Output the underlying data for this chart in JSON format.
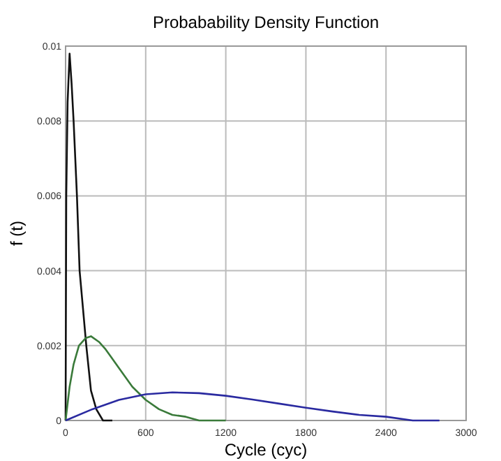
{
  "chart_data": {
    "type": "line",
    "title": "Probabability Density Function",
    "xlabel": "Cycle (cyc)",
    "ylabel": "f (t)",
    "xlim": [
      0,
      3000
    ],
    "ylim": [
      0,
      0.01
    ],
    "xticks": [
      0,
      600,
      1200,
      1800,
      2400,
      3000
    ],
    "yticks": [
      0,
      0.002,
      0.004,
      0.006,
      0.008,
      0.01
    ],
    "grid": true,
    "series": [
      {
        "color": "#111111",
        "x": [
          0,
          5,
          15,
          30,
          45,
          60,
          85,
          105,
          130,
          155,
          190,
          230,
          280,
          350
        ],
        "values": [
          0,
          0.006,
          0.0085,
          0.0098,
          0.009,
          0.008,
          0.006,
          0.004,
          0.003,
          0.002,
          0.0008,
          0.0003,
          0,
          0
        ]
      },
      {
        "color": "#3a7a3a",
        "x": [
          0,
          30,
          60,
          100,
          150,
          190,
          250,
          300,
          400,
          500,
          600,
          700,
          800,
          900,
          1000,
          1100,
          1200
        ],
        "values": [
          0,
          0.0009,
          0.0015,
          0.002,
          0.0022,
          0.00225,
          0.0021,
          0.0019,
          0.0014,
          0.0009,
          0.00055,
          0.0003,
          0.00015,
          0.0001,
          0,
          0,
          0
        ]
      },
      {
        "color": "#2a2aa0",
        "x": [
          0,
          200,
          400,
          600,
          800,
          1000,
          1200,
          1400,
          1600,
          1800,
          2000,
          2200,
          2400,
          2600,
          2800
        ],
        "values": [
          0,
          0.0003,
          0.00055,
          0.0007,
          0.00075,
          0.00073,
          0.00066,
          0.00056,
          0.00045,
          0.00034,
          0.00024,
          0.00015,
          0.0001,
          0,
          0
        ]
      }
    ]
  }
}
